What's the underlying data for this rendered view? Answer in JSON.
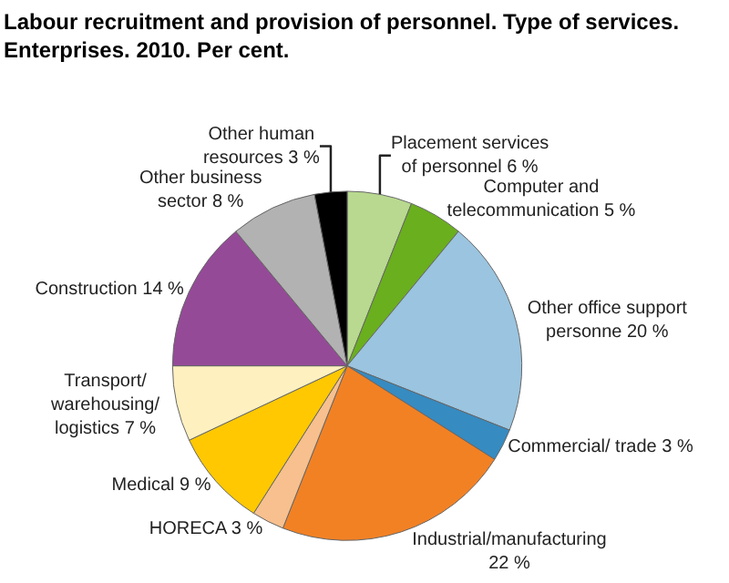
{
  "chart_data": {
    "type": "pie",
    "title": "Labour recruitment and provision of personnel. Type of services.\nEnterprises. 2010. Per cent.",
    "categories": [
      "Placement services of personnel",
      "Computer and telecommunication",
      "Other office support personne",
      "Commercial/ trade",
      "Industrial/manufacturing",
      "HORECA",
      "Medical",
      "Transport/ warehousing/ logistics",
      "Construction",
      "Other business sector",
      "Other human resources"
    ],
    "values": [
      6,
      5,
      20,
      3,
      22,
      3,
      9,
      7,
      14,
      8,
      3
    ],
    "value_labels": [
      "6 %",
      "5 %",
      "20 %",
      "3 %",
      "22 %",
      "3 %",
      "9 %",
      "7 %",
      "14 %",
      "8 %",
      "3 %"
    ],
    "colors": [
      "#b8d98f",
      "#6aaf1e",
      "#9ac4df",
      "#368bc1",
      "#f28124",
      "#f7c08e",
      "#ffc800",
      "#fff0c0",
      "#954a98",
      "#b2b2b2",
      "#000000"
    ],
    "legend": false
  }
}
